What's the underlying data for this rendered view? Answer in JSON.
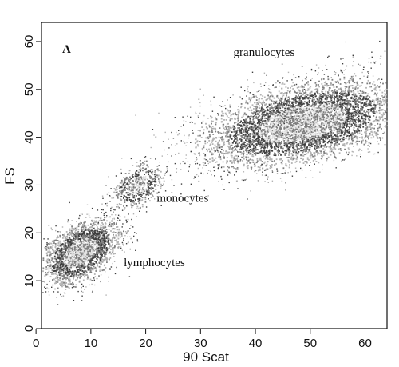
{
  "chart_data": {
    "type": "scatter",
    "panel_label": "A",
    "xlabel": "90 Scat",
    "ylabel": "FS",
    "xlim": [
      1,
      64
    ],
    "ylim": [
      0,
      64
    ],
    "xticks": [
      0,
      10,
      20,
      30,
      40,
      50,
      60
    ],
    "yticks": [
      0,
      10,
      20,
      30,
      40,
      50,
      60
    ],
    "grid": false,
    "annotations": [
      {
        "text": "granulocytes",
        "x": 36,
        "y": 57
      },
      {
        "text": "monocytes",
        "x": 22,
        "y": 26.5
      },
      {
        "text": "lymphocytes",
        "x": 16,
        "y": 13
      }
    ],
    "populations": [
      {
        "label": "lymphocytes",
        "center": [
          8,
          16
        ],
        "spread": [
          3.5,
          3.0
        ],
        "tilt": 0.45
      },
      {
        "label": "monocytes",
        "center": [
          18.5,
          30
        ],
        "spread": [
          2.2,
          2.2
        ],
        "tilt": 0.4
      },
      {
        "label": "granulocytes",
        "center": [
          48.5,
          43
        ],
        "spread": [
          9.0,
          4.0
        ],
        "tilt": 0.22
      }
    ],
    "colors": {
      "dark": "#3f3f3f",
      "mid": "#7f7f7f",
      "light": "#b3b3b3",
      "pale": "#e3e3e3"
    }
  }
}
